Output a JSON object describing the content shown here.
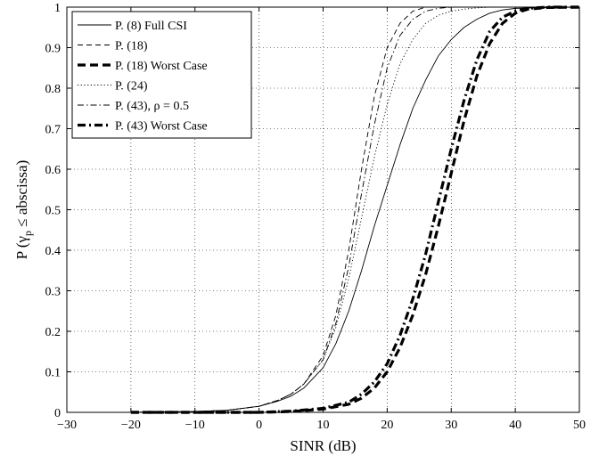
{
  "chart_data": {
    "type": "line",
    "title": "",
    "xlabel": "SINR (dB)",
    "ylabel_parts": {
      "prefix": "P (",
      "gamma": "γ",
      "subscript": "p",
      "suffix": " ≤ abscissa)"
    },
    "xlim": [
      -30,
      50
    ],
    "ylim": [
      0,
      1
    ],
    "xticks": [
      -30,
      -20,
      -10,
      0,
      10,
      20,
      30,
      40,
      50
    ],
    "xtick_labels": [
      "−30",
      "−20",
      "−10",
      "0",
      "10",
      "20",
      "30",
      "40",
      "50"
    ],
    "yticks": [
      0,
      0.1,
      0.2,
      0.3,
      0.4,
      0.5,
      0.6,
      0.7,
      0.8,
      0.9,
      1
    ],
    "ytick_labels": [
      "0",
      "0.1",
      "0.2",
      "0.3",
      "0.4",
      "0.5",
      "0.6",
      "0.7",
      "0.8",
      "0.9",
      "1"
    ],
    "grid": true,
    "legend_position": "top-left",
    "series": [
      {
        "name": "P. (8) Full CSI",
        "style": "solid",
        "weight": "thin",
        "color": "#000000",
        "x": [
          -20,
          -10,
          -5,
          0,
          3,
          5,
          7,
          10,
          12,
          14,
          16,
          18,
          20,
          22,
          24,
          26,
          28,
          30,
          32,
          34,
          36,
          38,
          40,
          45,
          50
        ],
        "y": [
          0,
          0.002,
          0.005,
          0.015,
          0.028,
          0.04,
          0.06,
          0.11,
          0.17,
          0.25,
          0.35,
          0.46,
          0.56,
          0.66,
          0.75,
          0.82,
          0.88,
          0.92,
          0.95,
          0.97,
          0.985,
          0.993,
          0.997,
          0.999,
          1
        ]
      },
      {
        "name": "P. (18)",
        "style": "dashed",
        "weight": "thin",
        "color": "#000000",
        "x": [
          -20,
          -10,
          -5,
          0,
          3,
          5,
          7,
          10,
          12,
          14,
          16,
          18,
          20,
          22,
          24,
          25,
          26,
          28,
          30,
          50
        ],
        "y": [
          0,
          0.002,
          0.005,
          0.015,
          0.03,
          0.045,
          0.07,
          0.14,
          0.24,
          0.4,
          0.6,
          0.78,
          0.9,
          0.96,
          0.99,
          0.995,
          1,
          1,
          1,
          1
        ]
      },
      {
        "name": "P. (18) Worst Case",
        "style": "dashed",
        "weight": "thick",
        "color": "#000000",
        "x": [
          -20,
          0,
          5,
          10,
          14,
          16,
          18,
          20,
          22,
          24,
          26,
          28,
          30,
          32,
          34,
          36,
          38,
          40,
          42,
          45,
          50
        ],
        "y": [
          0,
          0,
          0.002,
          0.008,
          0.02,
          0.035,
          0.06,
          0.1,
          0.16,
          0.24,
          0.34,
          0.46,
          0.59,
          0.72,
          0.83,
          0.91,
          0.96,
          0.985,
          0.995,
          0.999,
          1
        ]
      },
      {
        "name": "P. (24)",
        "style": "dotted",
        "weight": "thin",
        "color": "#000000",
        "x": [
          -20,
          -10,
          -5,
          0,
          3,
          5,
          7,
          10,
          12,
          14,
          16,
          18,
          20,
          22,
          24,
          26,
          28,
          30,
          32,
          34,
          36,
          40,
          50
        ],
        "y": [
          0,
          0.002,
          0.005,
          0.015,
          0.03,
          0.045,
          0.07,
          0.13,
          0.21,
          0.33,
          0.48,
          0.63,
          0.76,
          0.86,
          0.92,
          0.96,
          0.98,
          0.99,
          0.995,
          0.998,
          1,
          1,
          1
        ]
      },
      {
        "name": "P. (43), ρ = 0.5",
        "style": "dashdot",
        "weight": "thin",
        "color": "#000000",
        "x": [
          -20,
          -10,
          -5,
          0,
          3,
          5,
          7,
          10,
          12,
          14,
          16,
          18,
          20,
          22,
          24,
          26,
          28,
          30,
          50
        ],
        "y": [
          0,
          0.002,
          0.005,
          0.015,
          0.03,
          0.045,
          0.07,
          0.13,
          0.22,
          0.36,
          0.54,
          0.71,
          0.85,
          0.93,
          0.97,
          0.99,
          0.997,
          1,
          1
        ]
      },
      {
        "name": "P. (43) Worst Case",
        "style": "dashdot",
        "weight": "thick",
        "color": "#000000",
        "x": [
          -20,
          0,
          5,
          10,
          14,
          16,
          18,
          20,
          22,
          24,
          26,
          28,
          30,
          32,
          34,
          36,
          38,
          40,
          42,
          45,
          50
        ],
        "y": [
          0,
          0,
          0.003,
          0.01,
          0.025,
          0.045,
          0.075,
          0.12,
          0.19,
          0.28,
          0.39,
          0.52,
          0.65,
          0.77,
          0.87,
          0.94,
          0.975,
          0.99,
          0.997,
          1,
          1
        ]
      }
    ]
  }
}
